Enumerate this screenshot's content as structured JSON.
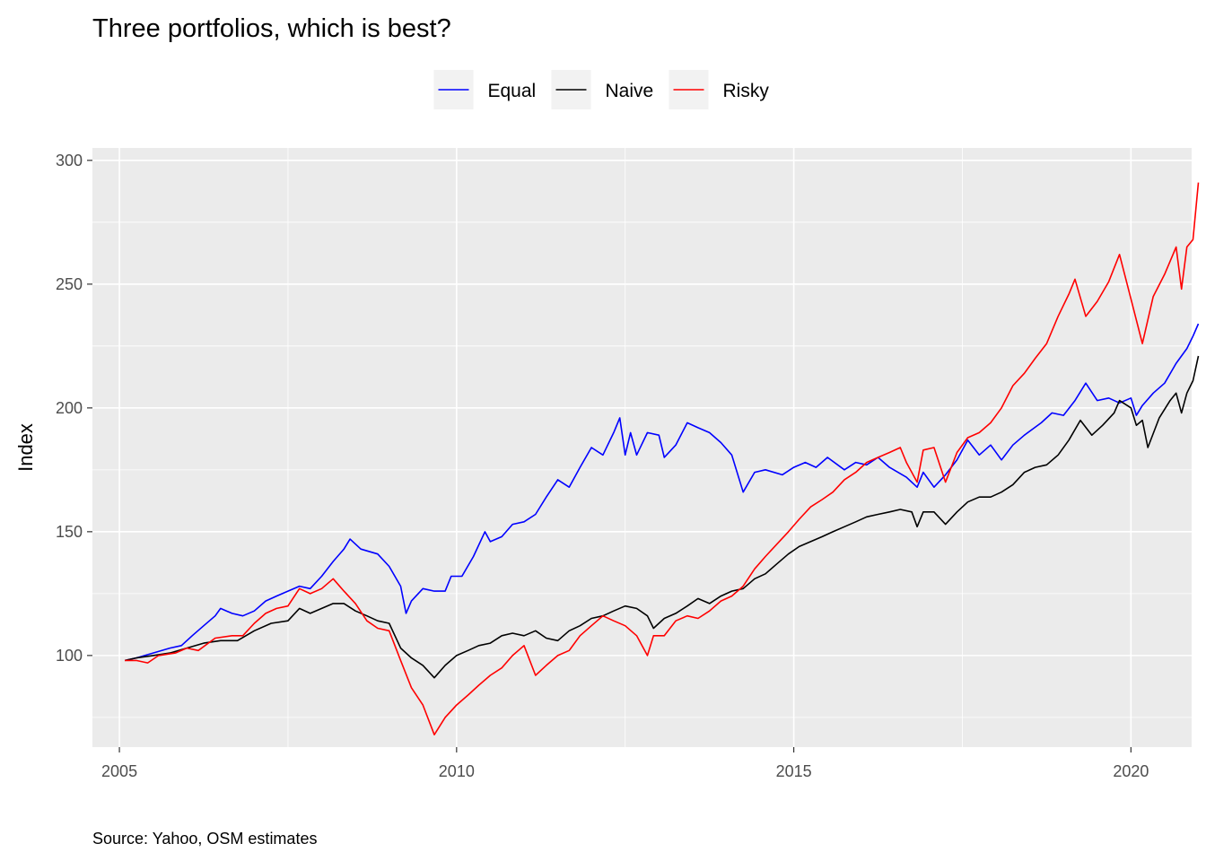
{
  "chart_data": {
    "type": "line",
    "title": "Three portfolios, which is best?",
    "caption": "Source: Yahoo, OSM estimates",
    "xlabel": "",
    "ylabel": "Index",
    "xlim": [
      2004.6,
      2020.9
    ],
    "ylim": [
      63,
      305
    ],
    "x_ticks": [
      2005,
      2010,
      2015,
      2020
    ],
    "x_tick_labels": [
      "2005",
      "2010",
      "2015",
      "2020"
    ],
    "y_ticks": [
      100,
      150,
      200,
      250,
      300
    ],
    "y_tick_labels": [
      "100",
      "150",
      "200",
      "250",
      "300"
    ],
    "grid": true,
    "legend": {
      "position": "top",
      "entries": [
        "Equal",
        "Naive",
        "Risky"
      ]
    },
    "colors": {
      "Equal": "#0000ff",
      "Naive": "#000000",
      "Risky": "#ff0000",
      "panel": "#ebebeb",
      "grid": "#ffffff"
    },
    "series": [
      {
        "name": "Equal",
        "points": [
          [
            2005.08,
            98
          ],
          [
            2005.25,
            99
          ],
          [
            2005.5,
            101
          ],
          [
            2005.75,
            103
          ],
          [
            2005.92,
            104
          ],
          [
            2006.08,
            108
          ],
          [
            2006.25,
            112
          ],
          [
            2006.42,
            116
          ],
          [
            2006.5,
            119
          ],
          [
            2006.67,
            117
          ],
          [
            2006.83,
            116
          ],
          [
            2007.0,
            118
          ],
          [
            2007.17,
            122
          ],
          [
            2007.33,
            124
          ],
          [
            2007.5,
            126
          ],
          [
            2007.67,
            128
          ],
          [
            2007.83,
            127
          ],
          [
            2008.0,
            132
          ],
          [
            2008.17,
            138
          ],
          [
            2008.33,
            143
          ],
          [
            2008.42,
            147
          ],
          [
            2008.58,
            143
          ],
          [
            2008.83,
            141
          ],
          [
            2009.0,
            136
          ],
          [
            2009.17,
            128
          ],
          [
            2009.25,
            117
          ],
          [
            2009.33,
            122
          ],
          [
            2009.5,
            127
          ],
          [
            2009.67,
            126
          ],
          [
            2009.83,
            126
          ],
          [
            2009.92,
            132
          ],
          [
            2010.08,
            132
          ],
          [
            2010.25,
            140
          ],
          [
            2010.42,
            150
          ],
          [
            2010.5,
            146
          ],
          [
            2010.67,
            148
          ],
          [
            2010.83,
            153
          ],
          [
            2011.0,
            154
          ],
          [
            2011.17,
            157
          ],
          [
            2011.33,
            164
          ],
          [
            2011.5,
            171
          ],
          [
            2011.67,
            168
          ],
          [
            2011.83,
            176
          ],
          [
            2012.0,
            184
          ],
          [
            2012.17,
            181
          ],
          [
            2012.33,
            190
          ],
          [
            2012.42,
            196
          ],
          [
            2012.5,
            181
          ],
          [
            2012.58,
            190
          ],
          [
            2012.67,
            181
          ],
          [
            2012.83,
            190
          ],
          [
            2013.0,
            189
          ],
          [
            2013.08,
            180
          ],
          [
            2013.25,
            185
          ],
          [
            2013.42,
            194
          ],
          [
            2013.58,
            192
          ],
          [
            2013.75,
            190
          ],
          [
            2013.92,
            186
          ],
          [
            2014.08,
            181
          ],
          [
            2014.25,
            166
          ],
          [
            2014.42,
            174
          ],
          [
            2014.58,
            175
          ],
          [
            2014.83,
            173
          ],
          [
            2015.0,
            176
          ],
          [
            2015.17,
            178
          ],
          [
            2015.33,
            176
          ],
          [
            2015.5,
            180
          ],
          [
            2015.75,
            175
          ],
          [
            2015.92,
            178
          ],
          [
            2016.08,
            177
          ],
          [
            2016.25,
            180
          ],
          [
            2016.42,
            176
          ],
          [
            2016.67,
            172
          ],
          [
            2016.83,
            168
          ],
          [
            2016.92,
            174
          ],
          [
            2017.08,
            168
          ],
          [
            2017.25,
            173
          ],
          [
            2017.42,
            179
          ],
          [
            2017.58,
            187
          ],
          [
            2017.75,
            181
          ],
          [
            2017.92,
            185
          ],
          [
            2018.08,
            179
          ],
          [
            2018.25,
            185
          ],
          [
            2018.42,
            189
          ],
          [
            2018.67,
            194
          ],
          [
            2018.83,
            198
          ],
          [
            2019.0,
            197
          ],
          [
            2019.17,
            203
          ],
          [
            2019.33,
            210
          ],
          [
            2019.5,
            203
          ],
          [
            2019.67,
            204
          ],
          [
            2019.83,
            202
          ],
          [
            2020.0,
            204
          ],
          [
            2020.08,
            197
          ],
          [
            2020.17,
            201
          ],
          [
            2020.33,
            206
          ],
          [
            2020.5,
            210
          ],
          [
            2020.67,
            218
          ],
          [
            2020.83,
            224
          ],
          [
            2020.92,
            229
          ],
          [
            2021.0,
            234
          ]
        ]
      },
      {
        "name": "Naive",
        "points": [
          [
            2005.08,
            98
          ],
          [
            2005.25,
            99
          ],
          [
            2005.5,
            100
          ],
          [
            2005.75,
            101
          ],
          [
            2006.0,
            103
          ],
          [
            2006.25,
            105
          ],
          [
            2006.5,
            106
          ],
          [
            2006.75,
            106
          ],
          [
            2007.0,
            110
          ],
          [
            2007.25,
            113
          ],
          [
            2007.5,
            114
          ],
          [
            2007.67,
            119
          ],
          [
            2007.83,
            117
          ],
          [
            2008.0,
            119
          ],
          [
            2008.17,
            121
          ],
          [
            2008.33,
            121
          ],
          [
            2008.5,
            118
          ],
          [
            2008.67,
            116
          ],
          [
            2008.83,
            114
          ],
          [
            2009.0,
            113
          ],
          [
            2009.17,
            103
          ],
          [
            2009.33,
            99
          ],
          [
            2009.5,
            96
          ],
          [
            2009.67,
            91
          ],
          [
            2009.83,
            96
          ],
          [
            2010.0,
            100
          ],
          [
            2010.17,
            102
          ],
          [
            2010.33,
            104
          ],
          [
            2010.5,
            105
          ],
          [
            2010.67,
            108
          ],
          [
            2010.83,
            109
          ],
          [
            2011.0,
            108
          ],
          [
            2011.17,
            110
          ],
          [
            2011.33,
            107
          ],
          [
            2011.5,
            106
          ],
          [
            2011.67,
            110
          ],
          [
            2011.83,
            112
          ],
          [
            2012.0,
            115
          ],
          [
            2012.17,
            116
          ],
          [
            2012.33,
            118
          ],
          [
            2012.5,
            120
          ],
          [
            2012.67,
            119
          ],
          [
            2012.83,
            116
          ],
          [
            2012.92,
            111
          ],
          [
            2013.08,
            115
          ],
          [
            2013.25,
            117
          ],
          [
            2013.42,
            120
          ],
          [
            2013.58,
            123
          ],
          [
            2013.75,
            121
          ],
          [
            2013.92,
            124
          ],
          [
            2014.08,
            126
          ],
          [
            2014.25,
            127
          ],
          [
            2014.42,
            131
          ],
          [
            2014.58,
            133
          ],
          [
            2014.75,
            137
          ],
          [
            2014.92,
            141
          ],
          [
            2015.08,
            144
          ],
          [
            2015.25,
            146
          ],
          [
            2015.42,
            148
          ],
          [
            2015.58,
            150
          ],
          [
            2015.75,
            152
          ],
          [
            2015.92,
            154
          ],
          [
            2016.08,
            156
          ],
          [
            2016.25,
            157
          ],
          [
            2016.42,
            158
          ],
          [
            2016.58,
            159
          ],
          [
            2016.75,
            158
          ],
          [
            2016.83,
            152
          ],
          [
            2016.92,
            158
          ],
          [
            2017.08,
            158
          ],
          [
            2017.25,
            153
          ],
          [
            2017.42,
            158
          ],
          [
            2017.58,
            162
          ],
          [
            2017.75,
            164
          ],
          [
            2017.92,
            164
          ],
          [
            2018.08,
            166
          ],
          [
            2018.25,
            169
          ],
          [
            2018.42,
            174
          ],
          [
            2018.58,
            176
          ],
          [
            2018.75,
            177
          ],
          [
            2018.92,
            181
          ],
          [
            2019.08,
            187
          ],
          [
            2019.25,
            195
          ],
          [
            2019.42,
            189
          ],
          [
            2019.58,
            193
          ],
          [
            2019.75,
            198
          ],
          [
            2019.83,
            203
          ],
          [
            2020.0,
            200
          ],
          [
            2020.08,
            193
          ],
          [
            2020.17,
            195
          ],
          [
            2020.25,
            184
          ],
          [
            2020.42,
            196
          ],
          [
            2020.58,
            203
          ],
          [
            2020.67,
            206
          ],
          [
            2020.75,
            198
          ],
          [
            2020.83,
            206
          ],
          [
            2020.92,
            211
          ],
          [
            2021.0,
            221
          ]
        ]
      },
      {
        "name": "Risky",
        "points": [
          [
            2005.08,
            98
          ],
          [
            2005.25,
            98
          ],
          [
            2005.42,
            97
          ],
          [
            2005.58,
            100
          ],
          [
            2005.83,
            101
          ],
          [
            2006.0,
            103
          ],
          [
            2006.17,
            102
          ],
          [
            2006.42,
            107
          ],
          [
            2006.67,
            108
          ],
          [
            2006.83,
            108
          ],
          [
            2007.0,
            113
          ],
          [
            2007.17,
            117
          ],
          [
            2007.33,
            119
          ],
          [
            2007.5,
            120
          ],
          [
            2007.67,
            127
          ],
          [
            2007.83,
            125
          ],
          [
            2008.0,
            127
          ],
          [
            2008.17,
            131
          ],
          [
            2008.33,
            126
          ],
          [
            2008.5,
            121
          ],
          [
            2008.67,
            114
          ],
          [
            2008.83,
            111
          ],
          [
            2009.0,
            110
          ],
          [
            2009.17,
            98
          ],
          [
            2009.33,
            87
          ],
          [
            2009.5,
            80
          ],
          [
            2009.67,
            68
          ],
          [
            2009.83,
            75
          ],
          [
            2010.0,
            80
          ],
          [
            2010.17,
            84
          ],
          [
            2010.33,
            88
          ],
          [
            2010.5,
            92
          ],
          [
            2010.67,
            95
          ],
          [
            2010.83,
            100
          ],
          [
            2011.0,
            104
          ],
          [
            2011.17,
            92
          ],
          [
            2011.33,
            96
          ],
          [
            2011.5,
            100
          ],
          [
            2011.67,
            102
          ],
          [
            2011.83,
            108
          ],
          [
            2012.0,
            112
          ],
          [
            2012.17,
            116
          ],
          [
            2012.33,
            114
          ],
          [
            2012.5,
            112
          ],
          [
            2012.67,
            108
          ],
          [
            2012.83,
            100
          ],
          [
            2012.92,
            108
          ],
          [
            2013.08,
            108
          ],
          [
            2013.25,
            114
          ],
          [
            2013.42,
            116
          ],
          [
            2013.58,
            115
          ],
          [
            2013.75,
            118
          ],
          [
            2013.92,
            122
          ],
          [
            2014.08,
            124
          ],
          [
            2014.25,
            128
          ],
          [
            2014.42,
            135
          ],
          [
            2014.58,
            140
          ],
          [
            2014.75,
            145
          ],
          [
            2014.92,
            150
          ],
          [
            2015.08,
            155
          ],
          [
            2015.25,
            160
          ],
          [
            2015.42,
            163
          ],
          [
            2015.58,
            166
          ],
          [
            2015.75,
            171
          ],
          [
            2015.92,
            174
          ],
          [
            2016.08,
            178
          ],
          [
            2016.25,
            180
          ],
          [
            2016.42,
            182
          ],
          [
            2016.58,
            184
          ],
          [
            2016.67,
            178
          ],
          [
            2016.83,
            170
          ],
          [
            2016.92,
            183
          ],
          [
            2017.08,
            184
          ],
          [
            2017.25,
            170
          ],
          [
            2017.42,
            182
          ],
          [
            2017.58,
            188
          ],
          [
            2017.75,
            190
          ],
          [
            2017.92,
            194
          ],
          [
            2018.08,
            200
          ],
          [
            2018.25,
            209
          ],
          [
            2018.42,
            214
          ],
          [
            2018.58,
            220
          ],
          [
            2018.75,
            226
          ],
          [
            2018.92,
            237
          ],
          [
            2019.08,
            246
          ],
          [
            2019.17,
            252
          ],
          [
            2019.33,
            237
          ],
          [
            2019.5,
            243
          ],
          [
            2019.67,
            251
          ],
          [
            2019.83,
            262
          ],
          [
            2020.0,
            244
          ],
          [
            2020.17,
            226
          ],
          [
            2020.33,
            245
          ],
          [
            2020.5,
            254
          ],
          [
            2020.67,
            265
          ],
          [
            2020.75,
            248
          ],
          [
            2020.83,
            265
          ],
          [
            2020.92,
            268
          ],
          [
            2021.0,
            291
          ]
        ]
      }
    ]
  }
}
